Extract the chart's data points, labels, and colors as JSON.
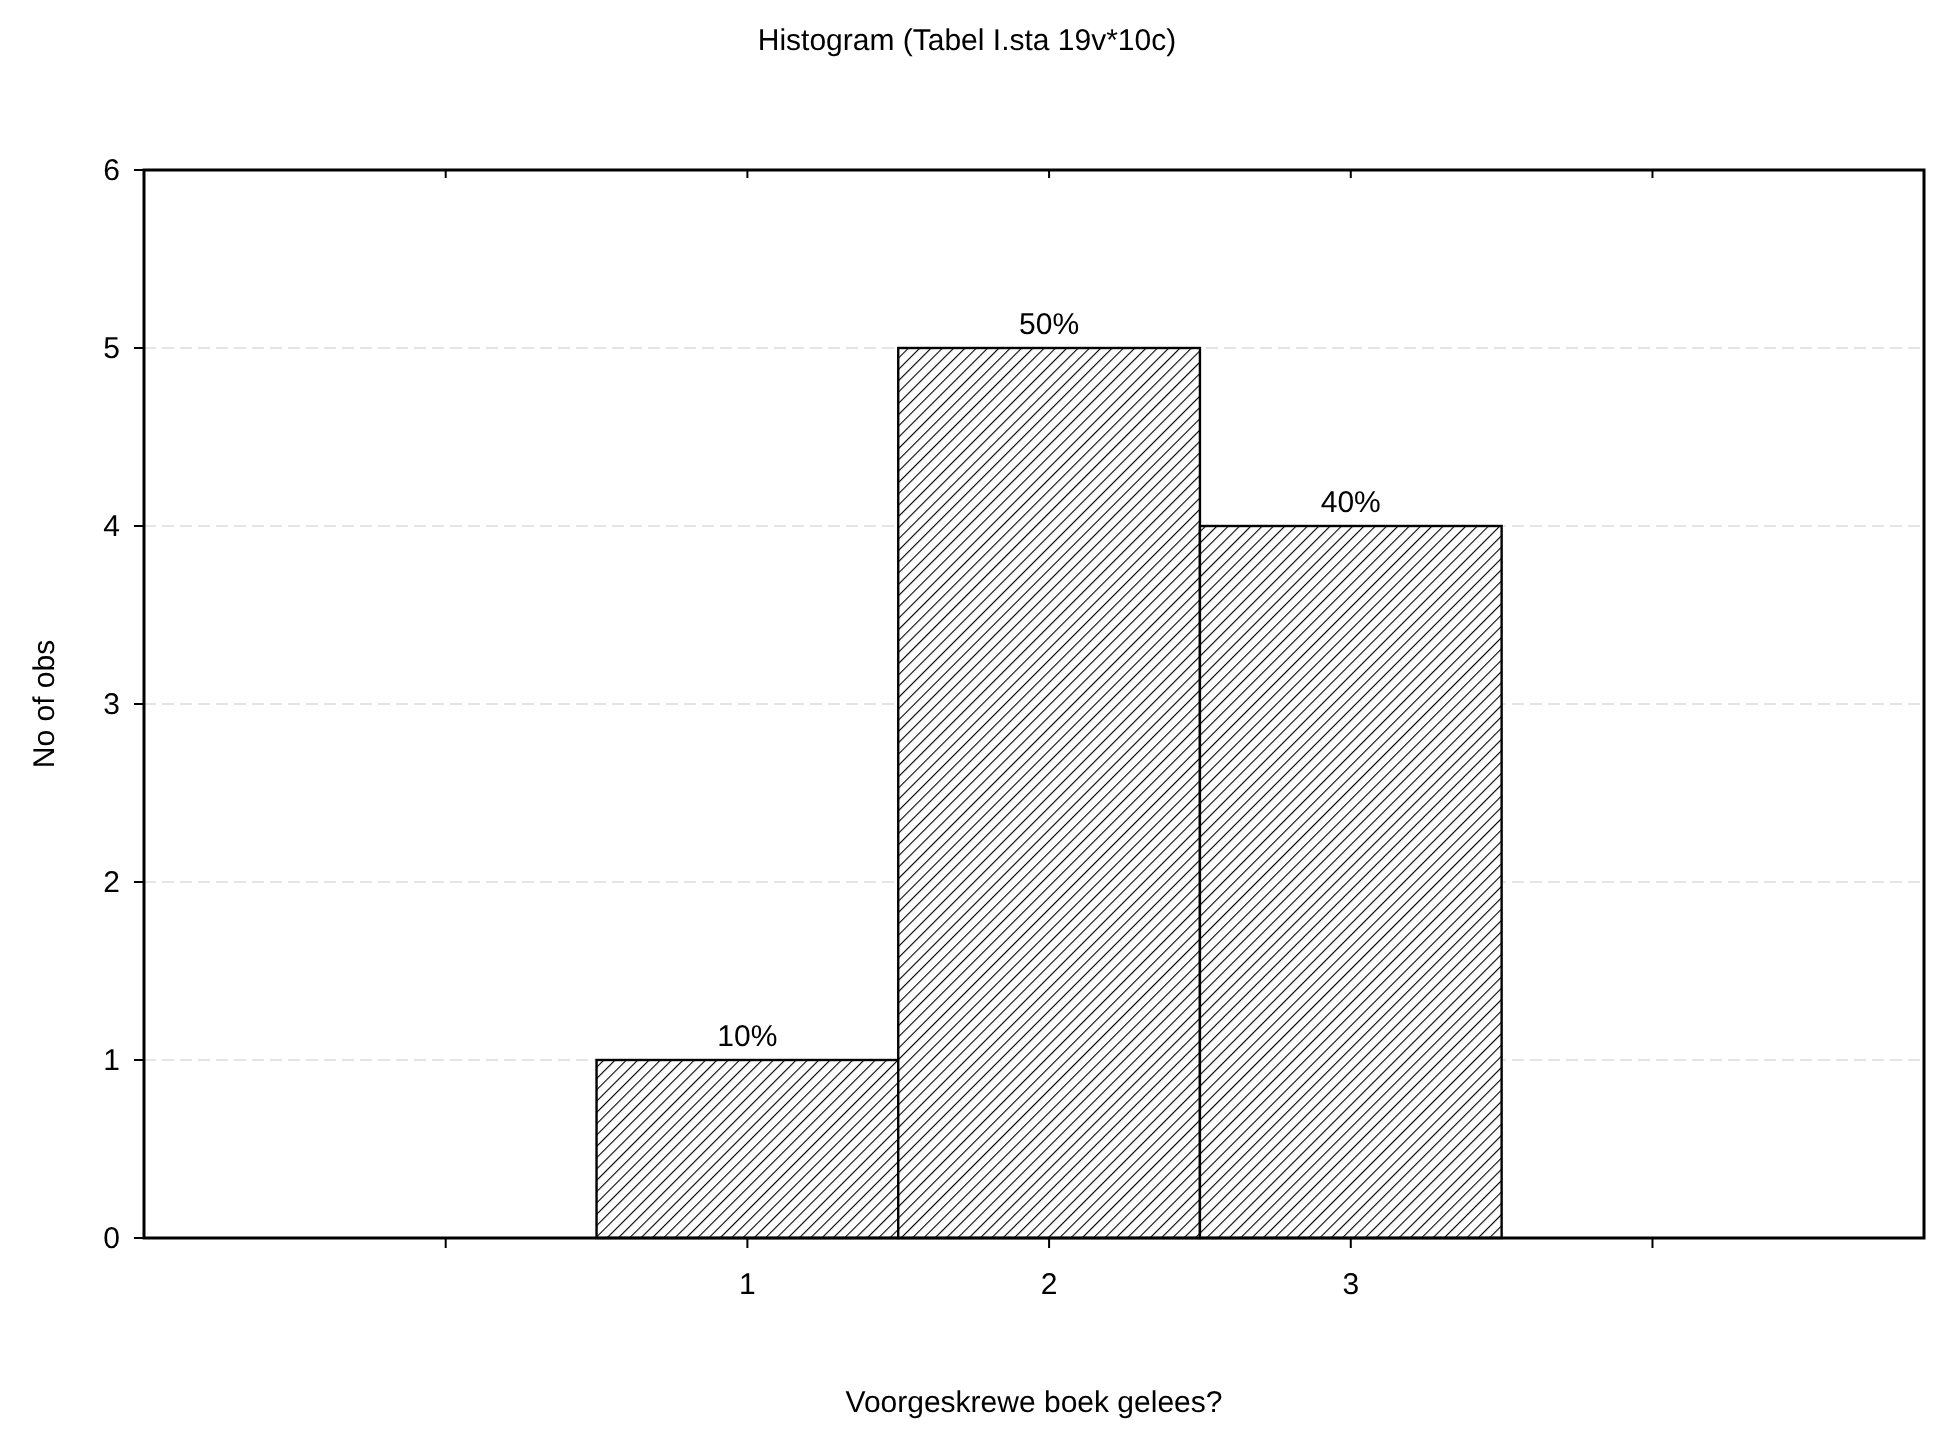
{
  "chart_data": {
    "type": "histogram",
    "title": "Histogram (Tabel I.sta 19v*10c)",
    "xlabel": "Voorgeskrewe boek gelees?",
    "ylabel": "No of obs",
    "bins": [
      0.5,
      1.5,
      2.5,
      3.5
    ],
    "values": [
      1,
      5,
      4
    ],
    "color": "#000000",
    "annotations": [
      {
        "text": "10%",
        "x": 1,
        "y": 1
      },
      {
        "text": "50%",
        "x": 2,
        "y": 5
      },
      {
        "text": "40%",
        "x": 3,
        "y": 4
      }
    ],
    "xlim": [
      -1,
      4.9
    ],
    "xticks": [
      {
        "value": 0,
        "label": null
      },
      1,
      2,
      3,
      {
        "value": 4,
        "label": null
      }
    ],
    "ylim": [
      0,
      6
    ],
    "yticks": [
      0,
      1,
      2,
      3,
      4,
      5,
      6
    ],
    "grid": "y"
  }
}
